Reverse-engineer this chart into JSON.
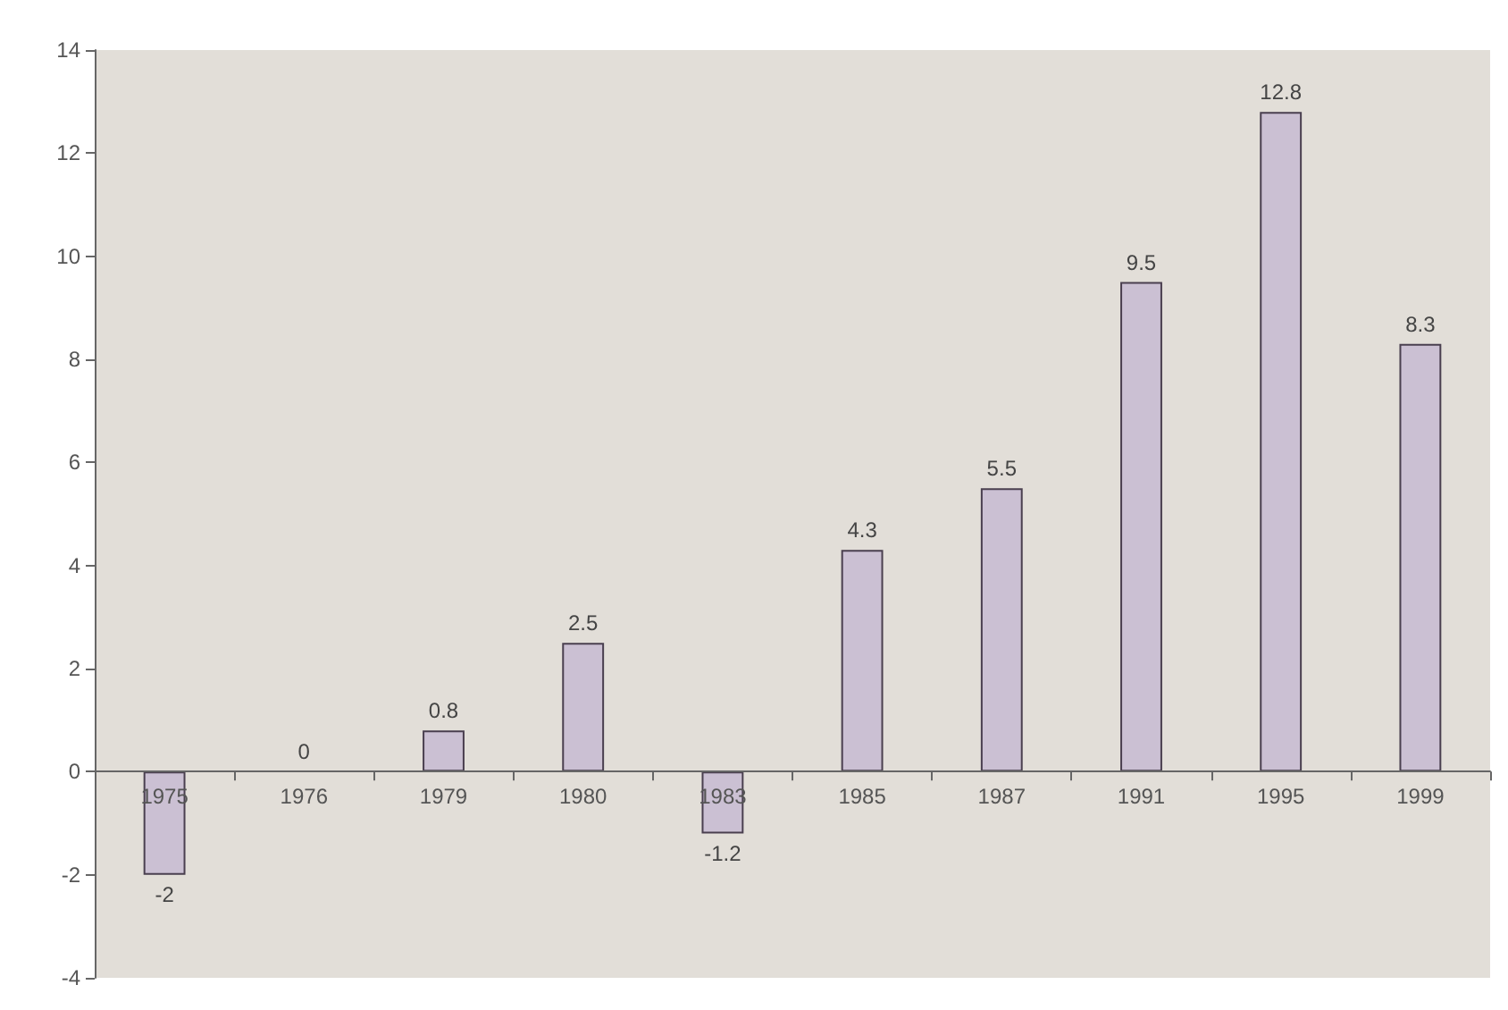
{
  "chart_data": {
    "type": "bar",
    "categories": [
      "1975",
      "1976",
      "1979",
      "1980",
      "1983",
      "1985",
      "1987",
      "1991",
      "1995",
      "1999"
    ],
    "values": [
      -2,
      0,
      0.8,
      2.5,
      -1.2,
      4.3,
      5.5,
      9.5,
      12.8,
      8.3
    ],
    "color": "#cbc0d3",
    "ylim": [
      -4,
      14
    ],
    "yticks": [
      -4,
      -2,
      0,
      2,
      4,
      6,
      8,
      10,
      12,
      14
    ],
    "data_labels": true
  }
}
